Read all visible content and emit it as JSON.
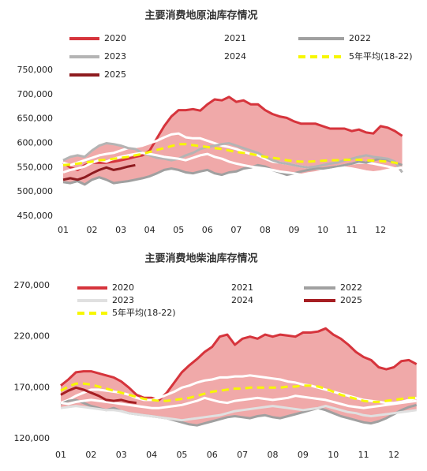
{
  "chart_data": [
    {
      "type": "line",
      "title": "主要消费地原油库存情况",
      "categories": [
        "01",
        null,
        null,
        null,
        "02",
        null,
        null,
        null,
        "03",
        null,
        null,
        null,
        "04",
        null,
        null,
        null,
        "05",
        null,
        null,
        null,
        "06",
        null,
        null,
        null,
        "07",
        null,
        null,
        null,
        "08",
        null,
        null,
        null,
        "09",
        null,
        null,
        null,
        "10",
        null,
        null,
        null,
        "11",
        null,
        null,
        null,
        "12",
        null,
        null,
        null
      ],
      "ylim": [
        450000,
        750000
      ],
      "yticks": [
        {
          "value": 450000,
          "label": "450,000"
        },
        {
          "value": 500000,
          "label": "500,000"
        },
        {
          "value": 550000,
          "label": "550,000"
        },
        {
          "value": 600000,
          "label": "600,000"
        },
        {
          "value": 650000,
          "label": "650,000"
        },
        {
          "value": 700000,
          "label": "700,000"
        },
        {
          "value": 750000,
          "label": "750,000"
        }
      ],
      "series": [
        {
          "name": "2020",
          "color": "#d6343c",
          "values": [
            560000,
            550000,
            545000,
            555000,
            560000,
            560000,
            560000,
            562000,
            565000,
            568000,
            572000,
            575000,
            585000,
            610000,
            635000,
            655000,
            668000,
            668000,
            670000,
            667000,
            680000,
            690000,
            688000,
            695000,
            685000,
            688000,
            680000,
            680000,
            668000,
            660000,
            655000,
            652000,
            645000,
            640000,
            640000,
            640000,
            635000,
            630000,
            630000,
            630000,
            625000,
            628000,
            622000,
            620000,
            635000,
            632000,
            625000,
            615000
          ]
        },
        {
          "name": "2021",
          "color": "#ffffff",
          "values": [
            560000,
            555000,
            560000,
            565000,
            570000,
            575000,
            578000,
            580000,
            585000,
            590000,
            592000,
            595000,
            600000,
            605000,
            612000,
            618000,
            620000,
            612000,
            610000,
            610000,
            605000,
            600000,
            595000,
            592000,
            588000,
            582000,
            578000,
            575000,
            568000,
            562000,
            560000,
            558000,
            555000,
            552000,
            550000,
            548000,
            545000,
            548000,
            552000,
            555000,
            558000,
            560000,
            560000,
            558000,
            555000,
            552000,
            548000,
            545000
          ]
        },
        {
          "name": "2022",
          "color": "#a0a0a0",
          "values": [
            520000,
            518000,
            522000,
            515000,
            525000,
            530000,
            525000,
            518000,
            520000,
            522000,
            525000,
            528000,
            532000,
            538000,
            545000,
            548000,
            545000,
            540000,
            538000,
            542000,
            545000,
            538000,
            535000,
            540000,
            542000,
            548000,
            550000,
            555000,
            552000,
            545000,
            540000,
            535000,
            538000,
            542000,
            545000,
            548000,
            548000,
            550000,
            552000,
            555000,
            558000,
            562000,
            560000,
            565000,
            568000,
            565000,
            560000,
            555000
          ]
        },
        {
          "name": "2023",
          "color": "#b4b4b4",
          "values": [
            565000,
            572000,
            575000,
            572000,
            585000,
            595000,
            600000,
            598000,
            595000,
            590000,
            588000,
            580000,
            575000,
            570000,
            568000,
            565000,
            568000,
            575000,
            580000,
            588000,
            592000,
            595000,
            598000,
            600000,
            595000,
            590000,
            585000,
            580000,
            572000,
            565000,
            560000,
            558000,
            555000,
            552000,
            550000,
            552000,
            555000,
            558000,
            560000,
            565000,
            568000,
            572000,
            575000,
            572000,
            570000,
            568000,
            562000,
            540000
          ]
        },
        {
          "name": "2024",
          "color": "#ffffff",
          "values": [
            540000,
            545000,
            548000,
            552000,
            560000,
            565000,
            562000,
            568000,
            572000,
            575000,
            578000,
            580000,
            578000,
            575000,
            572000,
            570000,
            568000,
            565000,
            570000,
            575000,
            578000,
            572000,
            568000,
            562000,
            558000,
            555000,
            552000,
            550000,
            548000,
            545000,
            542000,
            540000,
            538000,
            535000,
            538000,
            540000,
            542000,
            545000,
            548000,
            550000,
            548000,
            545000,
            542000,
            540000,
            542000,
            545000,
            548000,
            550000
          ]
        },
        {
          "name": "5年平均(18-22)",
          "color": "#f7f700",
          "dashed": true,
          "values": [
            555000,
            556000,
            558000,
            560000,
            562000,
            565000,
            566000,
            568000,
            570000,
            572000,
            575000,
            578000,
            582000,
            586000,
            590000,
            594000,
            598000,
            598000,
            596000,
            594000,
            592000,
            590000,
            588000,
            585000,
            582000,
            580000,
            578000,
            575000,
            572000,
            570000,
            568000,
            565000,
            563000,
            562000,
            562000,
            563000,
            564000,
            565000,
            565000,
            566000,
            566000,
            566000,
            565000,
            564000,
            563000,
            562000,
            560000,
            556000
          ]
        },
        {
          "name": "2025",
          "color": "#8e1b1f",
          "values": [
            525000,
            528000,
            525000,
            530000,
            538000,
            545000,
            550000,
            545000,
            548000,
            552000,
            555000,
            null,
            null,
            null,
            null,
            null,
            null,
            null,
            null,
            null,
            null,
            null,
            null,
            null,
            null,
            null,
            null,
            null,
            null,
            null,
            null,
            null,
            null,
            null,
            null,
            null,
            null,
            null,
            null,
            null,
            null,
            null,
            null,
            null,
            null,
            null,
            null,
            null
          ]
        }
      ]
    },
    {
      "type": "line",
      "title": "主要消费地柴油库存情况",
      "categories": [
        "01",
        null,
        null,
        null,
        "02",
        null,
        null,
        null,
        "03",
        null,
        null,
        null,
        "04",
        null,
        null,
        null,
        "05",
        null,
        null,
        null,
        "06",
        null,
        null,
        null,
        "07",
        null,
        null,
        null,
        "08",
        null,
        null,
        null,
        "09",
        null,
        null,
        null,
        "10",
        null,
        null,
        null,
        "11",
        null,
        null,
        null,
        "12",
        null,
        null,
        null
      ],
      "ylim": [
        120000,
        270000
      ],
      "yticks": [
        {
          "value": 120000,
          "label": "120,000"
        },
        {
          "value": 170000,
          "label": "170,000"
        },
        {
          "value": 220000,
          "label": "220,000"
        },
        {
          "value": 270000,
          "label": "270,000"
        }
      ],
      "series": [
        {
          "name": "2020",
          "color": "#d6343c",
          "values": [
            172000,
            178000,
            185000,
            186000,
            186000,
            184000,
            182000,
            180000,
            176000,
            170000,
            163000,
            160000,
            160000,
            158000,
            165000,
            175000,
            185000,
            192000,
            198000,
            205000,
            210000,
            220000,
            222000,
            212000,
            218000,
            220000,
            218000,
            222000,
            220000,
            222000,
            221000,
            220000,
            224000,
            224000,
            225000,
            228000,
            222000,
            218000,
            212000,
            205000,
            200000,
            197000,
            190000,
            188000,
            190000,
            196000,
            197000,
            193000
          ]
        },
        {
          "name": "2021",
          "color": "#ffffff",
          "values": [
            155000,
            158000,
            162000,
            165000,
            168000,
            168000,
            167000,
            166000,
            165000,
            163000,
            160000,
            158000,
            158000,
            160000,
            163000,
            166000,
            170000,
            172000,
            175000,
            177000,
            178000,
            180000,
            180000,
            181000,
            181000,
            182000,
            181000,
            180000,
            179000,
            178000,
            176000,
            175000,
            173000,
            172000,
            170000,
            168000,
            166000,
            164000,
            162000,
            160000,
            158000,
            157000,
            156000,
            155000,
            155000,
            156000,
            158000,
            160000
          ]
        },
        {
          "name": "2022",
          "color": "#a0a0a0",
          "values": [
            154000,
            157000,
            158000,
            155000,
            152000,
            150000,
            148000,
            150000,
            147000,
            145000,
            144000,
            143000,
            142000,
            141000,
            140000,
            138000,
            136000,
            134000,
            133000,
            135000,
            137000,
            139000,
            141000,
            142000,
            141000,
            140000,
            142000,
            143000,
            141000,
            140000,
            142000,
            144000,
            146000,
            148000,
            150000,
            148000,
            145000,
            142000,
            140000,
            138000,
            136000,
            135000,
            137000,
            140000,
            144000,
            148000,
            151000,
            153000
          ]
        },
        {
          "name": "2023",
          "color": "#e0e0e0",
          "values": [
            150000,
            151000,
            152000,
            151000,
            150000,
            149000,
            148000,
            148000,
            147000,
            145000,
            144000,
            143000,
            142000,
            141000,
            140000,
            139000,
            138000,
            139000,
            140000,
            141000,
            142000,
            143000,
            145000,
            147000,
            148000,
            149000,
            150000,
            151000,
            152000,
            151000,
            150000,
            149000,
            148000,
            149000,
            150000,
            152000,
            150000,
            148000,
            146000,
            145000,
            143000,
            142000,
            143000,
            144000,
            145000,
            146000,
            147000,
            148000
          ]
        },
        {
          "name": "2024",
          "color": "#ffffff",
          "values": [
            155000,
            154000,
            156000,
            157000,
            158000,
            157000,
            156000,
            155000,
            154000,
            153000,
            152000,
            151000,
            150000,
            150000,
            151000,
            152000,
            153000,
            155000,
            157000,
            160000,
            158000,
            156000,
            155000,
            157000,
            158000,
            159000,
            160000,
            159000,
            158000,
            159000,
            160000,
            162000,
            161000,
            160000,
            159000,
            158000,
            156000,
            154000,
            152000,
            151000,
            150000,
            151000,
            152000,
            153000,
            154000,
            155000,
            156000,
            157000
          ]
        },
        {
          "name": "2025",
          "color": "#a61e22",
          "values": [
            163000,
            167000,
            170000,
            168000,
            165000,
            162000,
            158000,
            157000,
            158000,
            156000,
            155000,
            null,
            null,
            null,
            null,
            null,
            null,
            null,
            null,
            null,
            null,
            null,
            null,
            null,
            null,
            null,
            null,
            null,
            null,
            null,
            null,
            null,
            null,
            null,
            null,
            null,
            null,
            null,
            null,
            null,
            null,
            null,
            null,
            null,
            null,
            null,
            null,
            null
          ]
        },
        {
          "name": "5年平均(18-22)",
          "color": "#f7f700",
          "dashed": true,
          "values": [
            167000,
            171000,
            174000,
            174000,
            173000,
            171000,
            169000,
            167000,
            165000,
            163000,
            161000,
            159000,
            158000,
            157000,
            157000,
            158000,
            159000,
            160000,
            162000,
            164000,
            166000,
            167000,
            168000,
            169000,
            169000,
            170000,
            170000,
            170000,
            170000,
            170000,
            171000,
            171000,
            172000,
            172000,
            171000,
            169000,
            166000,
            163000,
            161000,
            159000,
            157000,
            156000,
            156000,
            157000,
            158000,
            159000,
            160000,
            160000
          ]
        }
      ]
    }
  ]
}
